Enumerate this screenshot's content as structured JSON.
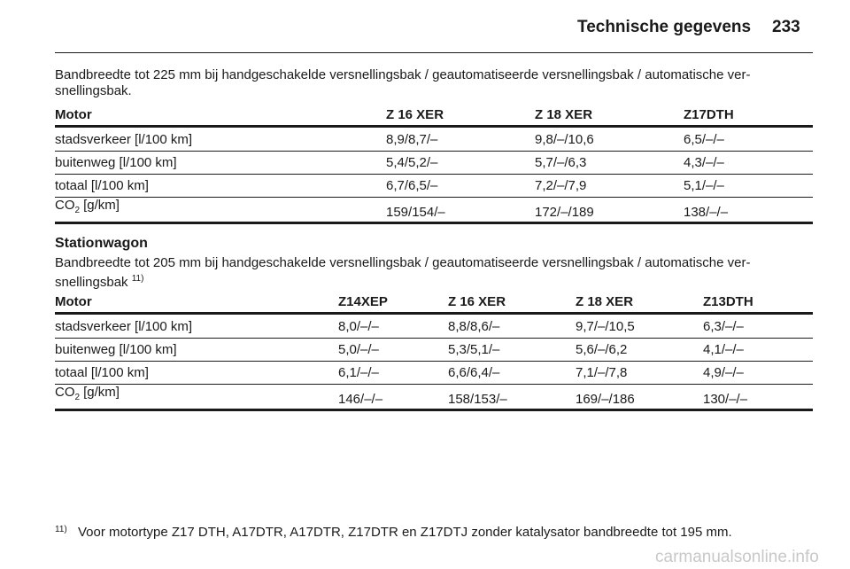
{
  "header": {
    "title": "Technische gegevens",
    "page": "233"
  },
  "intro": [
    "Bandbreedte tot 225 mm bij handgeschakelde versnellingsbak / geautomatiseerde versnellingsbak / automatische ver-",
    "snellingsbak."
  ],
  "tables": [
    {
      "columns": [
        "Motor",
        "Z 16 XER",
        "Z 18 XER",
        "Z17DTH"
      ],
      "rows": [
        [
          "stadsverkeer [l/100 km]",
          "8,9/8,7/–",
          "9,8/–/10,6",
          "6,5/–/–"
        ],
        [
          "buitenweg [l/100 km]",
          "5,4/5,2/–",
          "5,7/–/6,3",
          "4,3/–/–"
        ],
        [
          "totaal [l/100 km]",
          "6,7/6,5/–",
          "7,2/–/7,9",
          "5,1/–/–"
        ],
        [
          {
            "main": "CO",
            "sub": "2",
            "rest": "[g/km]"
          },
          "159/154/–",
          "172/–/189",
          "138/–/–"
        ]
      ]
    },
    {
      "columns": [
        "Motor",
        "Z14XEP",
        "Z 16 XER",
        "Z 18 XER",
        "Z13DTH"
      ],
      "rows": [
        [
          "stadsverkeer [l/100 km]",
          "8,0/–/–",
          "8,8/8,6/–",
          "9,7/–/10,5",
          "6,3/–/–"
        ],
        [
          "buitenweg [l/100 km]",
          "5,0/–/–",
          "5,3/5,1/–",
          "5,6/–/6,2",
          "4,1/–/–"
        ],
        [
          "totaal [l/100 km]",
          "6,1/–/–",
          "6,6/6,4/–",
          "7,1/–/7,8",
          "4,9/–/–"
        ],
        [
          {
            "main": "CO",
            "sub": "2",
            "rest": "[g/km]"
          },
          "146/–/–",
          "158/153/–",
          "169/–/186",
          "130/–/–"
        ]
      ]
    }
  ],
  "section": {
    "title": "Stationwagon",
    "lines": [
      "Bandbreedte tot 205 mm bij handgeschakelde versnellingsbak / geautomatiseerde versnellingsbak / automatische ver-",
      "snellingsbak"
    ],
    "footnote_ref": "11)"
  },
  "footnote": {
    "mark": "11)",
    "text": "Voor motortype Z17 DTH, A17DTR, A17DTR, Z17DTR en Z17DTJ zonder katalysator bandbreedte tot 195 mm."
  },
  "watermark": "carmanualsonline.info"
}
